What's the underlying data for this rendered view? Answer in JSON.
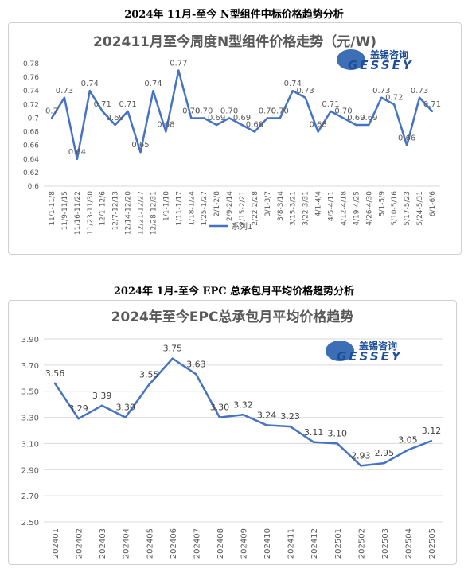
{
  "top_caption": "2024年 11月-至今 N型组件中标价格趋势分析",
  "bottom_caption": "2024年 1月-至今 EPC 总承包月平均价格趋势分析",
  "logo": {
    "cn": "盖锡咨询",
    "en": "GESSEY"
  },
  "colors": {
    "line": "#4472c4",
    "grid": "#d9d9d9",
    "text": "#595959"
  },
  "chart_data": [
    {
      "type": "line",
      "title": "202411月至今周度N型组件价格走势（元/W)",
      "xlabel": "",
      "ylabel": "",
      "ylim": [
        0.6,
        0.78
      ],
      "yticks": [
        "0.6",
        "0.62",
        "0.64",
        "0.66",
        "0.68",
        "0.7",
        "0.72",
        "0.74",
        "0.76",
        "0.78"
      ],
      "grid": false,
      "legend": "bottom",
      "categories": [
        "11/1-11/8",
        "11/9-11/15",
        "11/16-11/22",
        "11/23-11/30",
        "12/1-12/6",
        "12/7-12/13",
        "12/14-12/20",
        "12/21-12/27",
        "12/28-12/31",
        "1/1-1/10",
        "1/11-1/17",
        "1/18-1/24",
        "1/25-1/27",
        "2/1-2/8",
        "2/9-2/14",
        "2/15-2/21",
        "2/22-2/28",
        "3/1-3/7",
        "3/8-3/14",
        "3/15-3/21",
        "3/22-3/31",
        "4/1-4/4",
        "4/5-4/11",
        "4/12-4/18",
        "4/19-4/25",
        "4/26-4/30",
        "5/1-5/9",
        "5/10-5/16",
        "5/17-5/23",
        "5/24-5/31",
        "6/1-6/6"
      ],
      "series": [
        {
          "name": "系列1",
          "values": [
            0.7,
            0.73,
            0.64,
            0.74,
            0.71,
            0.69,
            0.71,
            0.65,
            0.74,
            0.68,
            0.77,
            0.7,
            0.7,
            0.69,
            0.7,
            0.69,
            0.68,
            0.7,
            0.7,
            0.74,
            0.73,
            0.68,
            0.71,
            0.7,
            0.69,
            0.69,
            0.73,
            0.72,
            0.66,
            0.73,
            0.71
          ],
          "labels": [
            "0.7",
            "0.73",
            "0.64",
            "0.74",
            "0.71",
            "0.69",
            "0.71",
            "0.65",
            "0.74",
            "0.68",
            "0.77",
            "0.70",
            "0.70",
            "0.69",
            "0.70",
            "0.69",
            "0.68",
            "0.70",
            "0.70",
            "0.74",
            "0.73",
            "0.68",
            "0.71",
            "0.70",
            "0.69",
            "0.69",
            "0.73",
            "0.72",
            "0.66",
            "0.73",
            "0.71"
          ]
        }
      ]
    },
    {
      "type": "line",
      "title": "2024年至今EPC总承包月平均价格趋势",
      "xlabel": "",
      "ylabel": "",
      "ylim": [
        2.5,
        3.9
      ],
      "yticks": [
        "2.50",
        "2.70",
        "2.90",
        "3.10",
        "3.30",
        "3.50",
        "3.70",
        "3.90"
      ],
      "grid": true,
      "categories": [
        "202401",
        "202402",
        "202403",
        "202404",
        "202405",
        "202406",
        "202407",
        "202408",
        "202409",
        "202410",
        "202411",
        "202412",
        "202501",
        "202502",
        "202503",
        "202504",
        "202505"
      ],
      "series": [
        {
          "values": [
            3.56,
            3.29,
            3.39,
            3.3,
            3.55,
            3.75,
            3.63,
            3.3,
            3.32,
            3.24,
            3.23,
            3.11,
            3.1,
            2.93,
            2.95,
            3.05,
            3.12
          ],
          "labels": [
            "3.56",
            "3.29",
            "3.39",
            "3.30",
            "3.55",
            "3.75",
            "3.63",
            "3.30",
            "3.32",
            "3.24",
            "3.23",
            "3.11",
            "3.10",
            "2.93",
            "2.95",
            "3.05",
            "3.12"
          ]
        }
      ]
    }
  ]
}
